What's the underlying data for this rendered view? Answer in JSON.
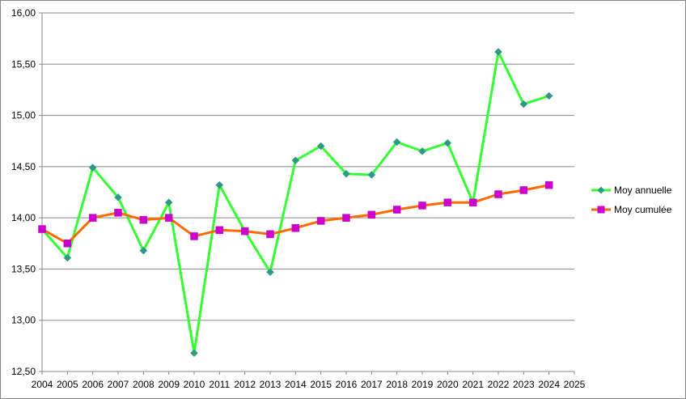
{
  "chart_data": {
    "type": "line",
    "title": "",
    "xlabel": "",
    "ylabel": "",
    "categories": [
      "2004",
      "2005",
      "2006",
      "2007",
      "2008",
      "2009",
      "2010",
      "2011",
      "2012",
      "2013",
      "2014",
      "2015",
      "2016",
      "2017",
      "2018",
      "2019",
      "2020",
      "2021",
      "2022",
      "2023",
      "2024",
      "2025"
    ],
    "ylim": [
      12.5,
      16.0
    ],
    "ytick_step": 0.5,
    "ytick_labels": [
      "12,50",
      "13,00",
      "13,50",
      "14,00",
      "14,50",
      "15,00",
      "15,50",
      "16,00"
    ],
    "grid": "horizontal",
    "legend_position": "right",
    "series": [
      {
        "name": "Moy annuelle",
        "color": "#33ff33",
        "marker": "diamond",
        "marker_color": "#2e9a86",
        "values": [
          13.89,
          13.61,
          14.49,
          14.2,
          13.68,
          14.15,
          12.68,
          14.32,
          13.87,
          13.47,
          14.56,
          14.7,
          14.43,
          14.42,
          14.74,
          14.65,
          14.73,
          14.15,
          15.62,
          15.11,
          15.19,
          null
        ]
      },
      {
        "name": "Moy cumulée",
        "color": "#ff6a00",
        "marker": "square",
        "marker_color": "#cc00cc",
        "values": [
          13.89,
          13.75,
          14.0,
          14.05,
          13.98,
          14.0,
          13.82,
          13.88,
          13.87,
          13.84,
          13.9,
          13.97,
          14.0,
          14.03,
          14.08,
          14.12,
          14.15,
          14.15,
          14.23,
          14.27,
          14.32,
          null
        ]
      }
    ]
  }
}
